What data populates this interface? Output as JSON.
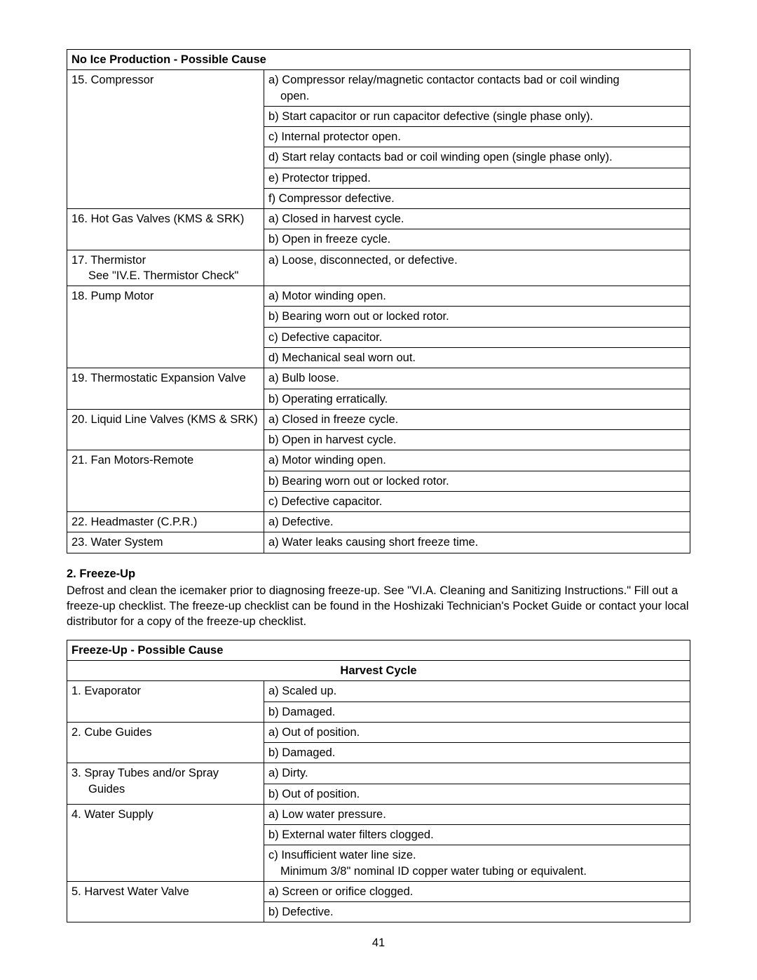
{
  "table1": {
    "header": "No Ice Production - Possible Cause",
    "rows": [
      {
        "comp": "15. Compressor",
        "cause_prefix": "a)",
        "cause": "Compressor relay/magnetic contactor contacts bad or coil winding",
        "cause_cont": "open."
      },
      {
        "comp": "",
        "cause": "b) Start capacitor or run capacitor defective (single phase only)."
      },
      {
        "comp": "",
        "cause": "c) Internal protector open."
      },
      {
        "comp": "",
        "cause": "d) Start relay contacts bad or coil winding open (single phase only)."
      },
      {
        "comp": "",
        "cause": "e) Protector tripped."
      },
      {
        "comp": "",
        "cause": "f)  Compressor defective."
      },
      {
        "comp": "16. Hot Gas Valves (KMS & SRK)",
        "cause": "a) Closed in harvest cycle."
      },
      {
        "comp": "",
        "cause": "b) Open in freeze cycle."
      },
      {
        "comp": "17. Thermistor",
        "comp_cont": "See \"IV.E. Thermistor Check\"",
        "cause": "a) Loose, disconnected, or defective."
      },
      {
        "comp": "18. Pump Motor",
        "cause": "a) Motor winding open."
      },
      {
        "comp": "",
        "cause": "b) Bearing worn out or locked rotor."
      },
      {
        "comp": "",
        "cause": "c) Defective capacitor."
      },
      {
        "comp": "",
        "cause": "d) Mechanical seal worn out."
      },
      {
        "comp": "19. Thermostatic Expansion Valve",
        "cause": "a) Bulb loose."
      },
      {
        "comp": "",
        "cause": "b) Operating erratically."
      },
      {
        "comp": "20. Liquid Line Valves (KMS & SRK)",
        "cause": "a) Closed in freeze cycle."
      },
      {
        "comp": "",
        "cause": "b) Open in harvest cycle."
      },
      {
        "comp": "21. Fan Motors-Remote",
        "cause": "a) Motor winding open."
      },
      {
        "comp": "",
        "cause": "b) Bearing worn out or locked rotor."
      },
      {
        "comp": "",
        "cause": "c) Defective capacitor."
      },
      {
        "comp": "22. Headmaster (C.P.R.)",
        "cause": "a) Defective."
      },
      {
        "comp": "23. Water System",
        "cause": "a) Water leaks causing short freeze time."
      }
    ]
  },
  "section": {
    "heading": "2. Freeze-Up",
    "body": "Defrost and clean the icemaker prior to diagnosing freeze-up. See \"VI.A. Cleaning and Sanitizing Instructions.\" Fill out a freeze-up checklist. The freeze-up checklist can be found in the Hoshizaki Technician's Pocket Guide or contact your local distributor for a copy of the freeze-up checklist."
  },
  "table2": {
    "header": "Freeze-Up - Possible Cause",
    "subheader": "Harvest Cycle",
    "rows": [
      {
        "comp": "1. Evaporator",
        "cause": "a) Scaled up."
      },
      {
        "comp": "",
        "cause": "b) Damaged."
      },
      {
        "comp": "2. Cube Guides",
        "cause": "a) Out of position."
      },
      {
        "comp": "",
        "cause": "b) Damaged."
      },
      {
        "comp": "3. Spray Tubes and/or Spray",
        "comp_cont_plain": "Guides",
        "cause": "a) Dirty."
      },
      {
        "comp": "",
        "cause": "b) Out of position."
      },
      {
        "comp": "4. Water Supply",
        "cause": "a) Low water pressure."
      },
      {
        "comp": "",
        "cause": "b) External water filters clogged."
      },
      {
        "comp": "",
        "cause": "c) Insufficient water line size.",
        "cause_cont": "Minimum 3/8\" nominal ID copper water tubing or equivalent."
      },
      {
        "comp": "5. Harvest Water Valve",
        "cause": "a) Screen or orifice clogged."
      },
      {
        "comp": "",
        "cause": "b) Defective."
      }
    ]
  },
  "page_number": "41"
}
